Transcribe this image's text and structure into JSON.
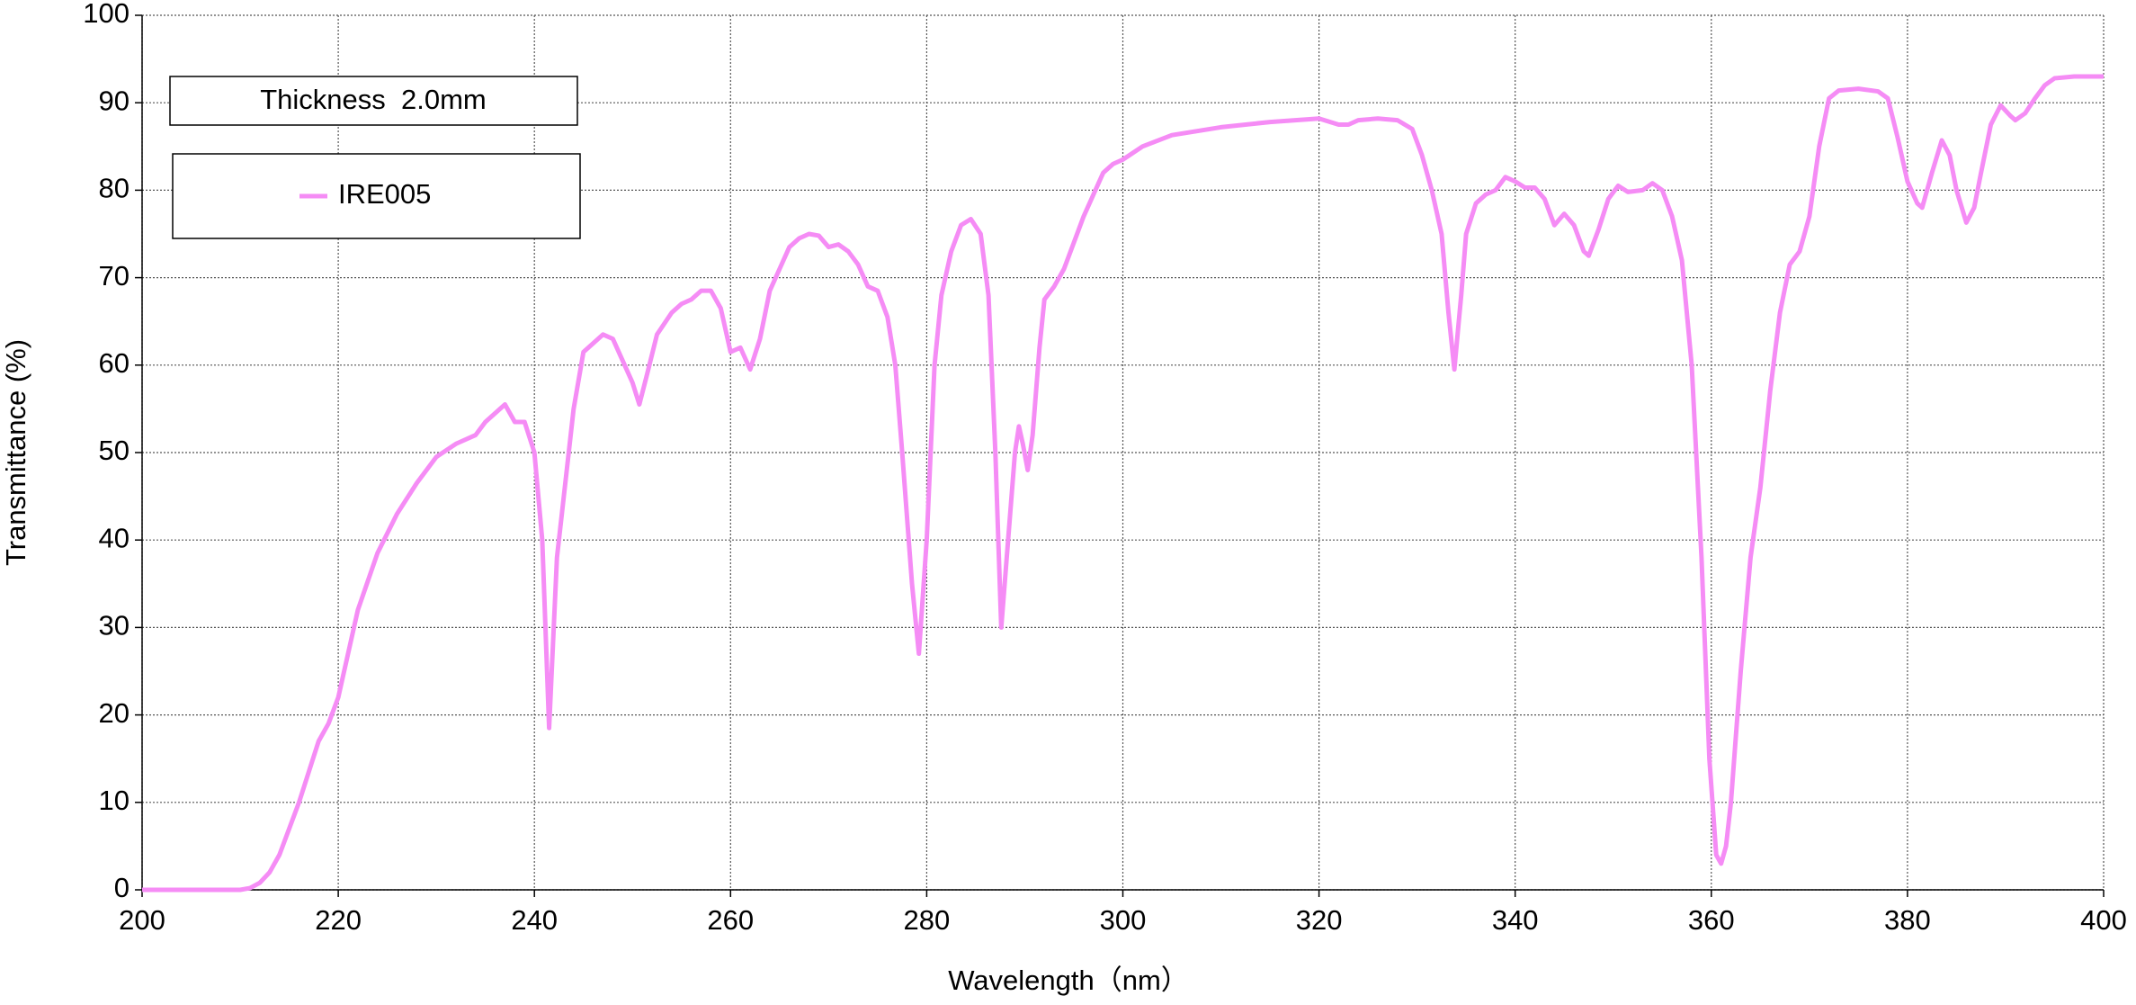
{
  "chart_data": {
    "type": "line",
    "annotation": "Thickness  2.0mm",
    "xlabel": "Wavelength（nm）",
    "ylabel": "Transmittance (%)",
    "xlim": [
      200,
      400
    ],
    "xticks": [
      200,
      220,
      240,
      260,
      280,
      300,
      320,
      340,
      360,
      380,
      400
    ],
    "ylim": [
      0,
      100
    ],
    "yticks": [
      0,
      10,
      20,
      30,
      40,
      50,
      60,
      70,
      80,
      90,
      100
    ],
    "grid": true,
    "legend": "upper left",
    "x": [
      200,
      205,
      210,
      211,
      212,
      213,
      214,
      215,
      216,
      217,
      218,
      219,
      220,
      221,
      222,
      224,
      226,
      228,
      230,
      232,
      234,
      235,
      236,
      237,
      238,
      239,
      240,
      240.8,
      241.5,
      242.3,
      243,
      244,
      245,
      246,
      247,
      248,
      249,
      250,
      250.7,
      251.5,
      252.5,
      254,
      255,
      256,
      257,
      258,
      259,
      260,
      261,
      262,
      263,
      264,
      265,
      266,
      267,
      268,
      269,
      270,
      271,
      272,
      273,
      274,
      275,
      276,
      276.8,
      277.5,
      278.5,
      279.2,
      280,
      280.8,
      281.5,
      282.5,
      283.5,
      284.5,
      285.5,
      286.3,
      287,
      287.6,
      288.3,
      289,
      289.4,
      289.8,
      290.3,
      290.8,
      291.5,
      292,
      293,
      294,
      295,
      296,
      297,
      298,
      299,
      300,
      302,
      305,
      310,
      315,
      320,
      322,
      323,
      324,
      326,
      328,
      329.5,
      330.5,
      331.5,
      332.5,
      333.2,
      333.8,
      334.5,
      335,
      336,
      337,
      338,
      339,
      340,
      341,
      342,
      343,
      344,
      345,
      346,
      347,
      347.5,
      348.5,
      349.5,
      350.5,
      351.5,
      353,
      354,
      355,
      356,
      357,
      358,
      359,
      359.8,
      360.5,
      361,
      361.5,
      362,
      363,
      364,
      365,
      366,
      367,
      368,
      369,
      370,
      371,
      372,
      373,
      375,
      377,
      378,
      379,
      380,
      381,
      381.5,
      382.5,
      383.5,
      384.3,
      385,
      386,
      386.8,
      387.5,
      388.5,
      389.5,
      390.5,
      391,
      392,
      393,
      394,
      395,
      397,
      400
    ],
    "series": [
      {
        "name": "IRE005",
        "color": "#f58cf5",
        "values": [
          0,
          0,
          0,
          0.2,
          0.8,
          2,
          4,
          7,
          10,
          13.5,
          17,
          19,
          22,
          27,
          32,
          38.5,
          43,
          46.5,
          49.5,
          51,
          52,
          53.5,
          54.5,
          55.5,
          53.5,
          53.5,
          50,
          40,
          18.5,
          38,
          45,
          55,
          61.5,
          62.5,
          63.5,
          63,
          60.5,
          58,
          55.5,
          59,
          63.5,
          66,
          67,
          67.5,
          68.5,
          68.5,
          66.5,
          61.5,
          62,
          59.5,
          63,
          68.5,
          71,
          73.5,
          74.5,
          75,
          74.8,
          73.5,
          73.8,
          73,
          71.5,
          69,
          68.5,
          65.5,
          60,
          50,
          35,
          27,
          40,
          60,
          68,
          73,
          76,
          76.7,
          75,
          68,
          50,
          30,
          40,
          50,
          53,
          51,
          48,
          52,
          62,
          67.5,
          69,
          71,
          74,
          77,
          79.5,
          82,
          83,
          83.5,
          85,
          86.3,
          87.2,
          87.8,
          88.2,
          87.5,
          87.5,
          88,
          88.2,
          88,
          87,
          84,
          80,
          75,
          66,
          59.5,
          68,
          75,
          78.5,
          79.5,
          80,
          81.5,
          81,
          80.3,
          80.3,
          79,
          76,
          77.3,
          76,
          73,
          72.5,
          75.5,
          79,
          80.5,
          79.8,
          80,
          80.8,
          80,
          77,
          72,
          60,
          38,
          15,
          4,
          3,
          5,
          10,
          25,
          38,
          46,
          57,
          66,
          71.5,
          73,
          77,
          85,
          90.5,
          91.4,
          91.6,
          91.3,
          90.5,
          86,
          81,
          78.5,
          78,
          82,
          85.7,
          84,
          80,
          76.3,
          78,
          82,
          87.5,
          89.7,
          88.5,
          88,
          88.8,
          90.5,
          92,
          92.8,
          93,
          93
        ]
      }
    ]
  }
}
